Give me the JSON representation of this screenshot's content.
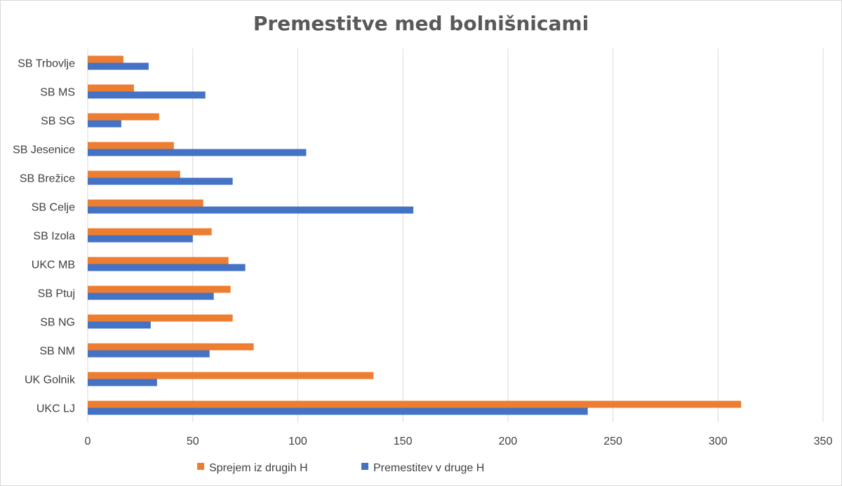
{
  "chart_data": {
    "type": "bar",
    "orientation": "horizontal",
    "title": "Premestitve med bolnišnicami",
    "categories": [
      "UKC LJ",
      "UK Golnik",
      "SB NM",
      "SB NG",
      "SB Ptuj",
      "UKC MB",
      "SB Izola",
      "SB Celje",
      "SB Brežice",
      "SB Jesenice",
      "SB SG",
      "SB MS",
      "SB Trbovlje"
    ],
    "series": [
      {
        "name": "Sprejem iz drugih H",
        "color": "#ed7d31",
        "values": [
          311,
          136,
          79,
          69,
          68,
          67,
          59,
          55,
          44,
          41,
          34,
          22,
          17
        ]
      },
      {
        "name": "Premestitev v druge H",
        "color": "#4472c4",
        "values": [
          238,
          33,
          58,
          30,
          60,
          75,
          50,
          155,
          69,
          104,
          16,
          56,
          29
        ]
      }
    ],
    "xlim": [
      0,
      350
    ],
    "xticks": [
      0,
      50,
      100,
      150,
      200,
      250,
      300,
      350
    ],
    "xlabel": "",
    "ylabel": "",
    "grid": true,
    "legend_position": "bottom"
  }
}
